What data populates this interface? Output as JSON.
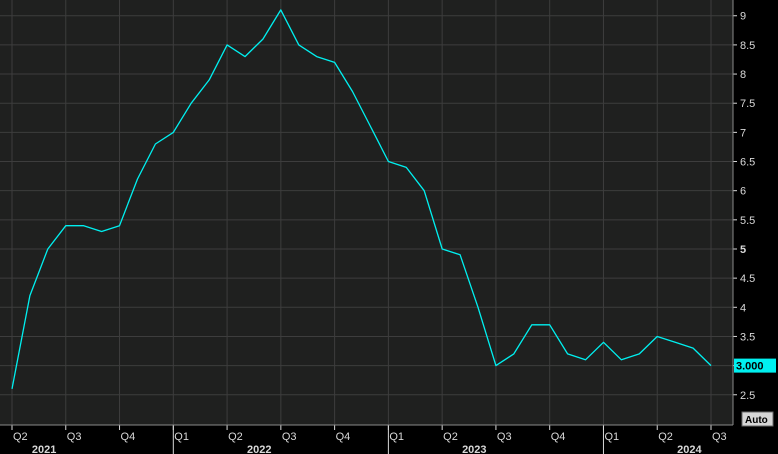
{
  "chart_data": {
    "type": "line",
    "y_ticks": [
      "2.5",
      "3",
      "3.5",
      "4",
      "4.5",
      "5",
      "5.5",
      "6",
      "6.5",
      "7",
      "7.5",
      "8",
      "8.5",
      "9"
    ],
    "ylim": [
      2.05,
      9.15
    ],
    "x_ticks": [
      {
        "label": "Q2",
        "month": 3
      },
      {
        "label": "Q3",
        "month": 6
      },
      {
        "label": "Q4",
        "month": 9
      },
      {
        "label": "Q1",
        "month": 12
      },
      {
        "label": "Q2",
        "month": 15
      },
      {
        "label": "Q3",
        "month": 18
      },
      {
        "label": "Q4",
        "month": 21
      },
      {
        "label": "Q1",
        "month": 24
      },
      {
        "label": "Q2",
        "month": 27
      },
      {
        "label": "Q3",
        "month": 30
      },
      {
        "label": "Q4",
        "month": 33
      },
      {
        "label": "Q1",
        "month": 36
      },
      {
        "label": "Q2",
        "month": 39
      },
      {
        "label": "Q3",
        "month": 42
      }
    ],
    "years": [
      {
        "label": "2021",
        "month": 4
      },
      {
        "label": "2022",
        "month": 16
      },
      {
        "label": "2023",
        "month": 28
      },
      {
        "label": "2024",
        "month": 40
      }
    ],
    "series": [
      {
        "color": "#00f0f0",
        "points": [
          {
            "date": "2021-03",
            "value": 2.6
          },
          {
            "date": "2021-04",
            "value": 4.2
          },
          {
            "date": "2021-05",
            "value": 5.0
          },
          {
            "date": "2021-06",
            "value": 5.4
          },
          {
            "date": "2021-07",
            "value": 5.4
          },
          {
            "date": "2021-08",
            "value": 5.3
          },
          {
            "date": "2021-09",
            "value": 5.4
          },
          {
            "date": "2021-10",
            "value": 6.2
          },
          {
            "date": "2021-11",
            "value": 6.8
          },
          {
            "date": "2021-12",
            "value": 7.0
          },
          {
            "date": "2022-01",
            "value": 7.5
          },
          {
            "date": "2022-02",
            "value": 7.9
          },
          {
            "date": "2022-03",
            "value": 8.5
          },
          {
            "date": "2022-04",
            "value": 8.3
          },
          {
            "date": "2022-05",
            "value": 8.6
          },
          {
            "date": "2022-06",
            "value": 9.1
          },
          {
            "date": "2022-07",
            "value": 8.5
          },
          {
            "date": "2022-08",
            "value": 8.3
          },
          {
            "date": "2022-09",
            "value": 8.2
          },
          {
            "date": "2022-10",
            "value": 7.7
          },
          {
            "date": "2022-11",
            "value": 7.1
          },
          {
            "date": "2022-12",
            "value": 6.5
          },
          {
            "date": "2023-01",
            "value": 6.4
          },
          {
            "date": "2023-02",
            "value": 6.0
          },
          {
            "date": "2023-03",
            "value": 5.0
          },
          {
            "date": "2023-04",
            "value": 4.9
          },
          {
            "date": "2023-05",
            "value": 4.0
          },
          {
            "date": "2023-06",
            "value": 3.0
          },
          {
            "date": "2023-07",
            "value": 3.2
          },
          {
            "date": "2023-08",
            "value": 3.7
          },
          {
            "date": "2023-09",
            "value": 3.7
          },
          {
            "date": "2023-10",
            "value": 3.2
          },
          {
            "date": "2023-11",
            "value": 3.1
          },
          {
            "date": "2023-12",
            "value": 3.4
          },
          {
            "date": "2024-01",
            "value": 3.1
          },
          {
            "date": "2024-02",
            "value": 3.2
          },
          {
            "date": "2024-03",
            "value": 3.5
          },
          {
            "date": "2024-04",
            "value": 3.4
          },
          {
            "date": "2024-05",
            "value": 3.3
          },
          {
            "date": "2024-06",
            "value": 3.0
          }
        ]
      }
    ],
    "last_value_label": "3.000",
    "bold_ticks": [
      "5",
      "3.000"
    ],
    "grid": true
  },
  "ui": {
    "auto_button_label": "Auto"
  },
  "colors": {
    "background": "#000000",
    "plot_background": "#1f201f",
    "grid": "#3d3d3d",
    "line": "#00f0f0",
    "axis_text": "#d9d9d9",
    "tag_background": "#00f0f0"
  }
}
